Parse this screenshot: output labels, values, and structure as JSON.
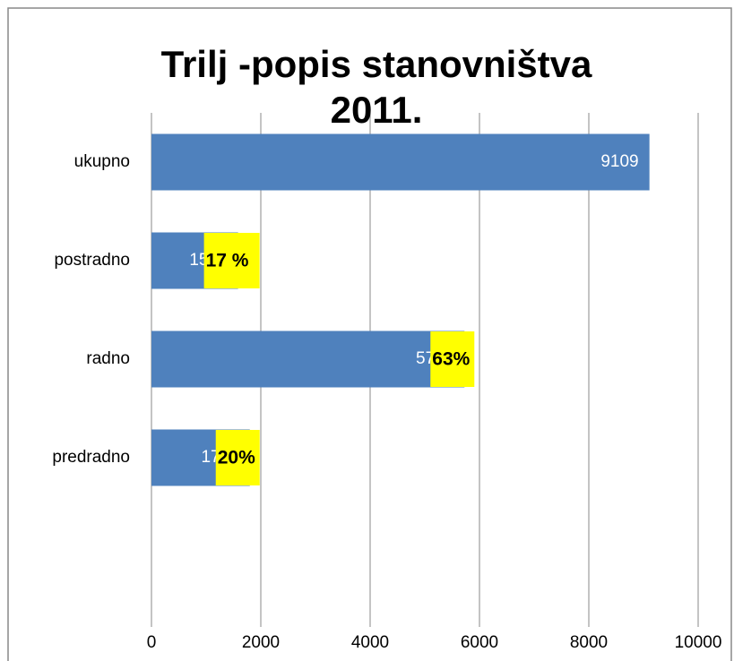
{
  "chart_data": {
    "type": "bar",
    "orientation": "horizontal",
    "title": "Trilj -popis stanovništva 2011.",
    "categories": [
      "ukupno",
      "postradno",
      "radno",
      "predradno"
    ],
    "values": [
      9109,
      1584,
      5726,
      1799
    ],
    "annotations": [
      null,
      "17 %",
      "63%",
      "20%"
    ],
    "annotation_color": "#ffff00",
    "color": "#4f81bd",
    "xlim": [
      0,
      10000
    ],
    "xticks": [
      0,
      2000,
      4000,
      6000,
      8000,
      10000
    ],
    "grid": true
  }
}
